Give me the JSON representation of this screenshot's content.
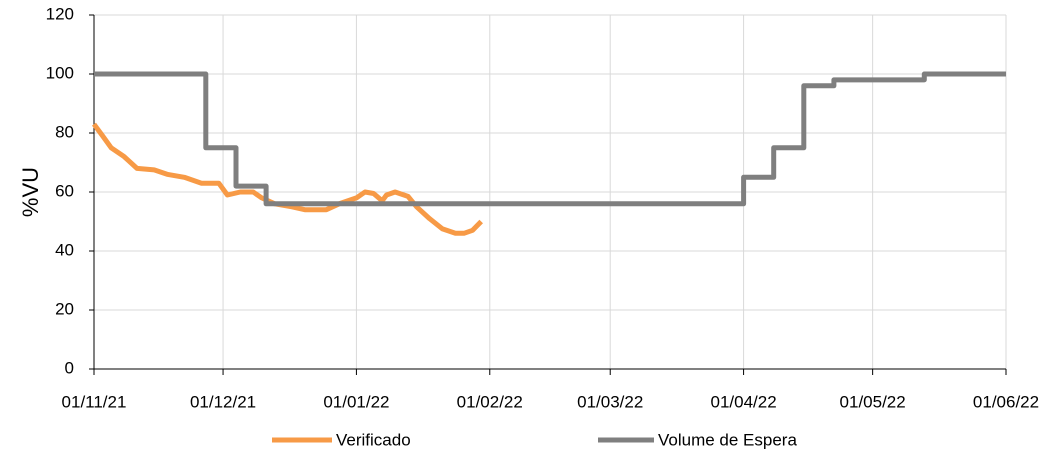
{
  "chart_data": {
    "type": "line",
    "y_label": "%VU",
    "xlim": [
      "2021-11-01",
      "2022-06-01"
    ],
    "xticks": [
      {
        "value": "2021-11-01",
        "label": "01/11/21"
      },
      {
        "value": "2021-12-01",
        "label": "01/12/21"
      },
      {
        "value": "2022-01-01",
        "label": "01/01/22"
      },
      {
        "value": "2022-02-01",
        "label": "01/02/22"
      },
      {
        "value": "2022-03-01",
        "label": "01/03/22"
      },
      {
        "value": "2022-04-01",
        "label": "01/04/22"
      },
      {
        "value": "2022-05-01",
        "label": "01/05/22"
      },
      {
        "value": "2022-06-01",
        "label": "01/06/22"
      }
    ],
    "ylim": [
      0,
      120
    ],
    "yticks": [
      0,
      20,
      40,
      60,
      80,
      100,
      120
    ],
    "grid": true,
    "series": [
      {
        "name": "Verificado",
        "color": "#f79a46",
        "x": [
          "2021-11-01",
          "2021-11-03",
          "2021-11-05",
          "2021-11-08",
          "2021-11-11",
          "2021-11-15",
          "2021-11-18",
          "2021-11-22",
          "2021-11-26",
          "2021-11-30",
          "2021-12-02",
          "2021-12-05",
          "2021-12-08",
          "2021-12-10",
          "2021-12-13",
          "2021-12-17",
          "2021-12-20",
          "2021-12-25",
          "2021-12-28",
          "2022-01-01",
          "2022-01-03",
          "2022-01-05",
          "2022-01-07",
          "2022-01-08",
          "2022-01-10",
          "2022-01-13",
          "2022-01-15",
          "2022-01-18",
          "2022-01-21",
          "2022-01-24",
          "2022-01-26",
          "2022-01-28",
          "2022-01-30"
        ],
        "values": [
          83,
          79,
          75,
          72,
          68,
          67.5,
          66,
          65,
          63,
          63,
          59,
          60,
          60,
          58,
          56,
          55,
          54,
          54,
          56,
          58,
          60,
          59.5,
          57,
          59,
          60,
          58.5,
          55,
          51,
          47.5,
          46,
          46,
          47,
          50
        ]
      },
      {
        "name": "Volume de Espera",
        "color": "#7f7f7f",
        "x": [
          "2021-11-01",
          "2021-11-27",
          "2021-11-27",
          "2021-12-04",
          "2021-12-04",
          "2021-12-11",
          "2021-12-11",
          "2022-04-01",
          "2022-04-01",
          "2022-04-08",
          "2022-04-08",
          "2022-04-15",
          "2022-04-15",
          "2022-04-22",
          "2022-04-22",
          "2022-05-13",
          "2022-05-13",
          "2022-06-01"
        ],
        "values": [
          100,
          100,
          75,
          75,
          62,
          62,
          56,
          56,
          65,
          65,
          75,
          75,
          96,
          96,
          98,
          98,
          100,
          100
        ]
      }
    ]
  }
}
